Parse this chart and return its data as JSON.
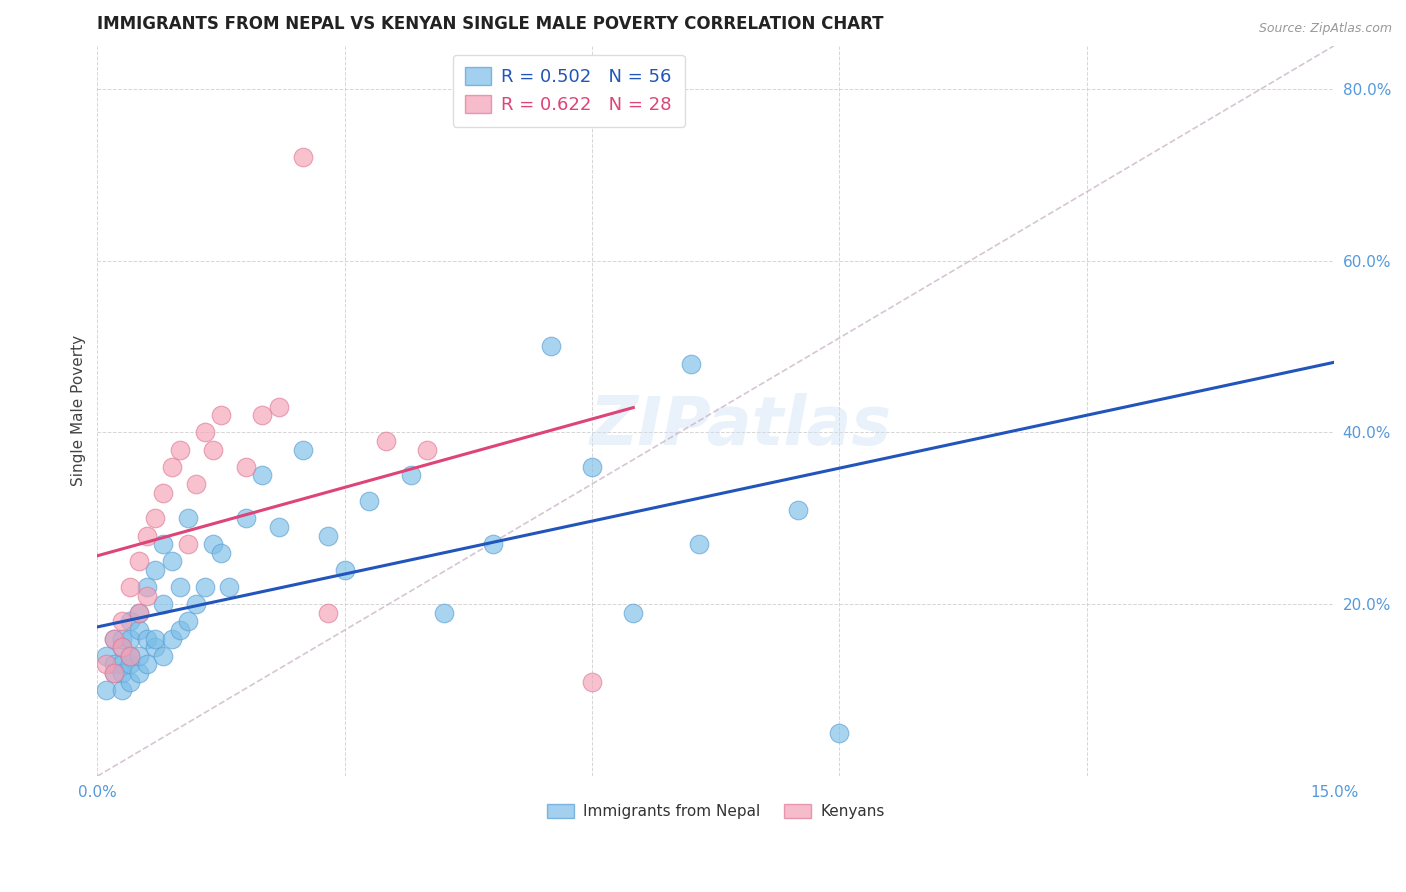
{
  "title": "IMMIGRANTS FROM NEPAL VS KENYAN SINGLE MALE POVERTY CORRELATION CHART",
  "source": "Source: ZipAtlas.com",
  "ylabel": "Single Male Poverty",
  "xlim": [
    0.0,
    0.15
  ],
  "ylim": [
    0.0,
    0.85
  ],
  "xticks": [
    0.0,
    0.03,
    0.06,
    0.09,
    0.12,
    0.15
  ],
  "yticks": [
    0.0,
    0.2,
    0.4,
    0.6,
    0.8
  ],
  "nepal_color": "#7bbde8",
  "kenya_color": "#f4a0b5",
  "nepal_edge": "#5a9fd4",
  "kenya_edge": "#e07898",
  "blue_line_color": "#2255bb",
  "pink_line_color": "#dd4477",
  "diag_line_color": "#ccb8c8",
  "legend_r1": "R = 0.502",
  "legend_n1": "N = 56",
  "legend_r2": "R = 0.622",
  "legend_n2": "N = 28",
  "legend_label1": "Immigrants from Nepal",
  "legend_label2": "Kenyans",
  "watermark": "ZIPatlas",
  "nepal_x": [
    0.001,
    0.001,
    0.002,
    0.002,
    0.002,
    0.003,
    0.003,
    0.003,
    0.003,
    0.003,
    0.004,
    0.004,
    0.004,
    0.004,
    0.004,
    0.005,
    0.005,
    0.005,
    0.005,
    0.006,
    0.006,
    0.006,
    0.007,
    0.007,
    0.007,
    0.008,
    0.008,
    0.008,
    0.009,
    0.009,
    0.01,
    0.01,
    0.011,
    0.011,
    0.012,
    0.013,
    0.014,
    0.015,
    0.016,
    0.018,
    0.02,
    0.022,
    0.025,
    0.028,
    0.03,
    0.033,
    0.038,
    0.042,
    0.048,
    0.055,
    0.06,
    0.065,
    0.073,
    0.085,
    0.072,
    0.09
  ],
  "nepal_y": [
    0.14,
    0.1,
    0.12,
    0.16,
    0.13,
    0.1,
    0.13,
    0.15,
    0.12,
    0.16,
    0.11,
    0.13,
    0.16,
    0.18,
    0.14,
    0.12,
    0.14,
    0.17,
    0.19,
    0.13,
    0.16,
    0.22,
    0.15,
    0.16,
    0.24,
    0.14,
    0.2,
    0.27,
    0.16,
    0.25,
    0.17,
    0.22,
    0.18,
    0.3,
    0.2,
    0.22,
    0.27,
    0.26,
    0.22,
    0.3,
    0.35,
    0.29,
    0.38,
    0.28,
    0.24,
    0.32,
    0.35,
    0.19,
    0.27,
    0.5,
    0.36,
    0.19,
    0.27,
    0.31,
    0.48,
    0.05
  ],
  "kenya_x": [
    0.001,
    0.002,
    0.002,
    0.003,
    0.003,
    0.004,
    0.004,
    0.005,
    0.005,
    0.006,
    0.006,
    0.007,
    0.008,
    0.009,
    0.01,
    0.011,
    0.012,
    0.013,
    0.014,
    0.015,
    0.018,
    0.02,
    0.022,
    0.025,
    0.028,
    0.035,
    0.04,
    0.06
  ],
  "kenya_y": [
    0.13,
    0.12,
    0.16,
    0.15,
    0.18,
    0.14,
    0.22,
    0.19,
    0.25,
    0.21,
    0.28,
    0.3,
    0.33,
    0.36,
    0.38,
    0.27,
    0.34,
    0.4,
    0.38,
    0.42,
    0.36,
    0.42,
    0.43,
    0.72,
    0.19,
    0.39,
    0.38,
    0.11
  ]
}
